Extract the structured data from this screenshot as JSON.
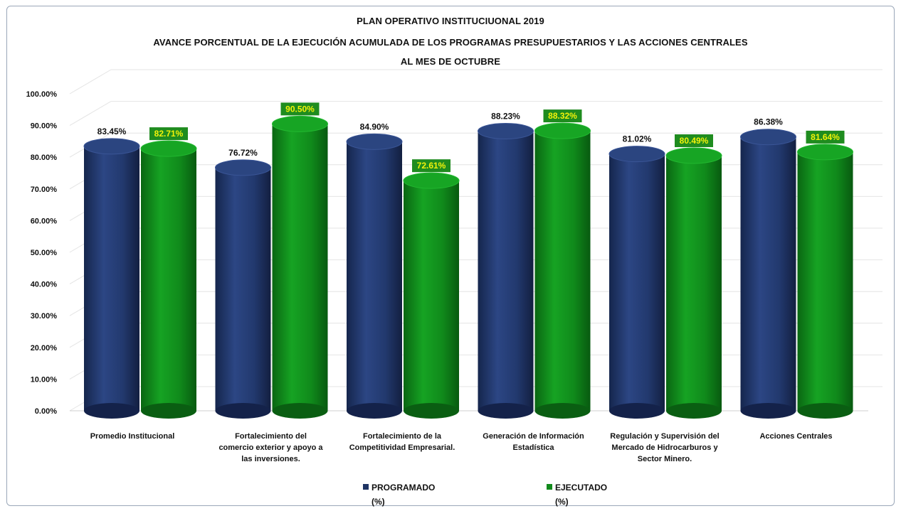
{
  "chart_data": {
    "type": "bar",
    "title": "PLAN OPERATIVO INSTITUCIUONAL 2019",
    "subtitle": "AVANCE PORCENTUAL DE LA EJECUCIÓN ACUMULADA DE LOS  PROGRAMAS PRESUPUESTARIOS  Y LAS ACCIONES CENTRALES",
    "subtitle2": "AL MES DE OCTUBRE",
    "categories": [
      "Promedio Institucional",
      "Fortalecimiento del comercio exterior y apoyo a las inversiones.",
      "Fortalecimiento de la Competitividad Empresarial.",
      "Generación de Información Estadística",
      "Regulación y Supervisión del Mercado de Hidrocarburos y Sector Minero.",
      "Acciones Centrales"
    ],
    "category_lines": [
      [
        "Promedio Institucional"
      ],
      [
        "Fortalecimiento del",
        "comercio exterior y apoyo a",
        "las inversiones."
      ],
      [
        "Fortalecimiento de la",
        "Competitividad Empresarial."
      ],
      [
        "Generación de Información",
        "Estadística"
      ],
      [
        "Regulación y Supervisión del",
        "Mercado de Hidrocarburos y",
        "Sector Minero."
      ],
      [
        "Acciones Centrales"
      ]
    ],
    "series": [
      {
        "name": "PROGRAMADO (%)",
        "legend_line1": "PROGRAMADO",
        "legend_line2": "(%)",
        "color": "#1f3464",
        "values": [
          83.45,
          76.72,
          84.9,
          88.23,
          81.02,
          86.38
        ],
        "labels": [
          "83.45%",
          "76.72%",
          "84.90%",
          "88.23%",
          "81.02%",
          "86.38%"
        ]
      },
      {
        "name": "EJECUTADO (%)",
        "legend_line1": "EJECUTADO",
        "legend_line2": "(%)",
        "color": "#118a1c",
        "label_bg": "#1f8c1f",
        "label_color": "#f2f20a",
        "values": [
          82.71,
          90.5,
          72.61,
          88.32,
          80.49,
          81.64
        ],
        "labels": [
          "82.71%",
          "90.50%",
          "72.61%",
          "88.32%",
          "80.49%",
          "81.64%"
        ]
      }
    ],
    "yticks": [
      "0.00%",
      "10.00%",
      "20.00%",
      "30.00%",
      "40.00%",
      "50.00%",
      "60.00%",
      "70.00%",
      "80.00%",
      "90.00%",
      "100.00%"
    ],
    "ylim": [
      0,
      100
    ],
    "grid": true,
    "legend_position": "bottom-center"
  }
}
